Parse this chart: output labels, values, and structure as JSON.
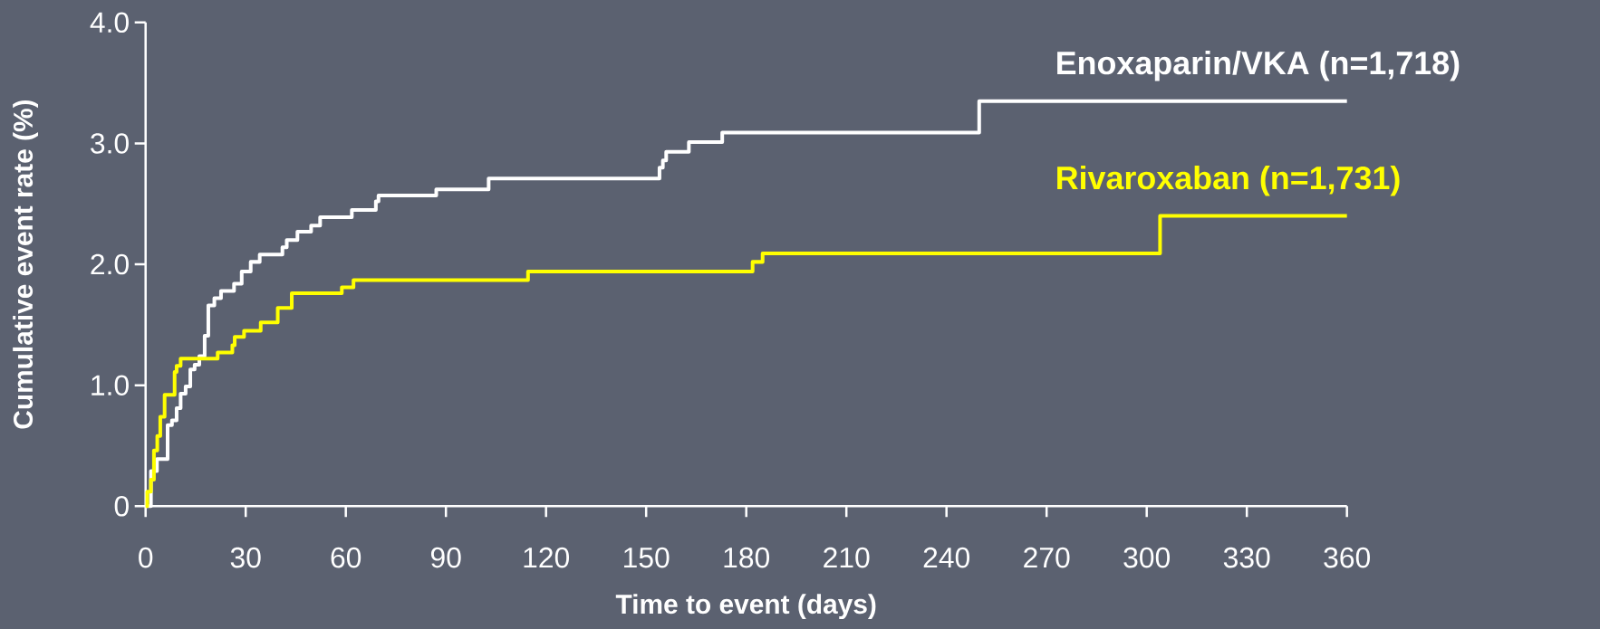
{
  "chart_data": {
    "type": "step",
    "xlabel": "Time to event (days)",
    "ylabel": "Cumulative event rate (%)",
    "xlim": [
      0,
      360
    ],
    "ylim": [
      0,
      4
    ],
    "xticks": [
      0,
      30,
      60,
      90,
      120,
      150,
      180,
      210,
      240,
      270,
      300,
      330,
      360
    ],
    "yticks": [
      0,
      {
        "value": 1,
        "label": "1.0"
      },
      {
        "value": 2,
        "label": "2.0"
      },
      {
        "value": 3,
        "label": "3.0"
      },
      {
        "value": 4,
        "label": "4.0"
      }
    ],
    "legend": false,
    "grid": false,
    "marker": "none",
    "line_style": "solid",
    "series": [
      {
        "name": "Enoxaparin/VKA (n=1,718)",
        "color": "#ffffff",
        "x": [
          0,
          1.6,
          3.4,
          6.6,
          7.9,
          9.3,
          10.5,
          12.0,
          13.4,
          14.7,
          16.1,
          17.7,
          18.8,
          20.6,
          22.6,
          26.5,
          28.8,
          31.5,
          34.2,
          41.0,
          42.3,
          45.5,
          49.6,
          52.3,
          61.8,
          69.0,
          69.8,
          87.1,
          102.8,
          154,
          155,
          156,
          162.8,
          172.8,
          249.8,
          360
        ],
        "values": [
          0,
          0.29,
          0.39,
          0.67,
          0.71,
          0.81,
          0.93,
          0.99,
          1.13,
          1.17,
          1.24,
          1.41,
          1.66,
          1.72,
          1.78,
          1.84,
          1.94,
          2.02,
          2.08,
          2.14,
          2.2,
          2.27,
          2.32,
          2.39,
          2.45,
          2.52,
          2.57,
          2.62,
          2.71,
          2.8,
          2.86,
          2.93,
          3.01,
          3.09,
          3.35,
          3.35
        ]
      },
      {
        "name": "Rivaroxaban (n=1,731)",
        "color": "#ffff00",
        "x": [
          0,
          0.5,
          1.6,
          2.5,
          3.5,
          4.4,
          5.7,
          8.7,
          9.3,
          10.5,
          21.6,
          26.0,
          26.7,
          29.5,
          34.5,
          39.6,
          43.8,
          58.8,
          62.3,
          114.6,
          181.9,
          184.9,
          304,
          360
        ],
        "values": [
          0,
          0.12,
          0.22,
          0.46,
          0.58,
          0.74,
          0.92,
          1.11,
          1.16,
          1.22,
          1.27,
          1.33,
          1.4,
          1.45,
          1.52,
          1.64,
          1.76,
          1.81,
          1.87,
          1.94,
          2.02,
          2.09,
          2.4,
          2.4
        ]
      }
    ]
  }
}
